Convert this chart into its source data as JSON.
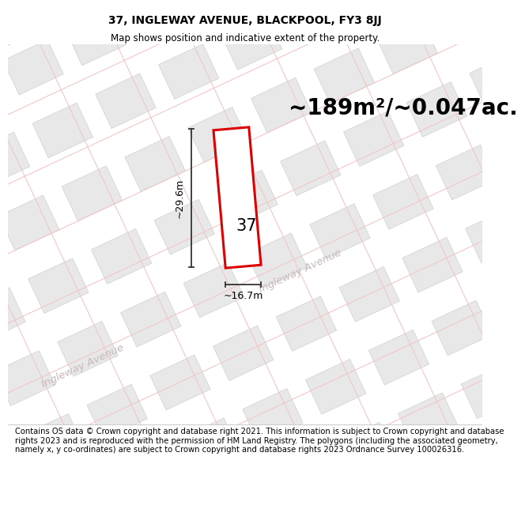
{
  "title": "37, INGLEWAY AVENUE, BLACKPOOL, FY3 8JJ",
  "subtitle": "Map shows position and indicative extent of the property.",
  "area_text": "~189m²/~0.047ac.",
  "number_label": "37",
  "dim_width": "~16.7m",
  "dim_height": "~29.6m",
  "footer": "Contains OS data © Crown copyright and database right 2021. This information is subject to Crown copyright and database rights 2023 and is reproduced with the permission of HM Land Registry. The polygons (including the associated geometry, namely x, y co-ordinates) are subject to Crown copyright and database rights 2023 Ordnance Survey 100026316.",
  "map_bg": "#faf8f8",
  "road_fill": "#f5eeee",
  "road_line": "#f0c8c8",
  "block_fill": "#e8e8e8",
  "block_edge": "#d0d0d0",
  "red_plot": "#dd0000",
  "title_fontsize": 10,
  "subtitle_fontsize": 8.5,
  "area_fontsize": 20,
  "label_fontsize": 16,
  "footer_fontsize": 7.2,
  "street_label_color": "#c8b8b8",
  "dim_line_color": "#333333"
}
